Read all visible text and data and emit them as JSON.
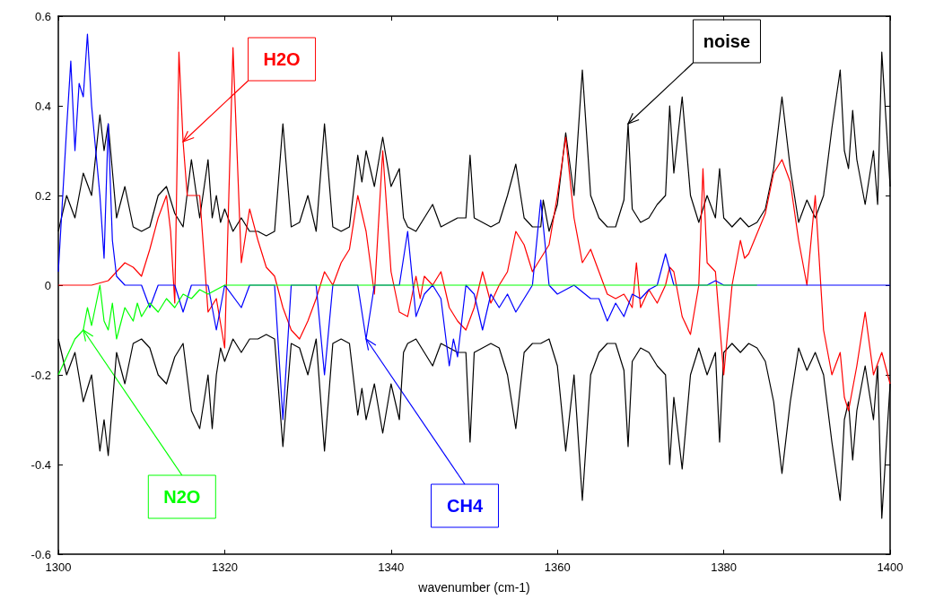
{
  "chart_data": {
    "type": "line",
    "xlabel": "wavenumber (cm-1)",
    "xlim": [
      1300,
      1400
    ],
    "xticks": [
      1300,
      1320,
      1340,
      1360,
      1380,
      1400
    ],
    "ylim": [
      -0.6,
      0.6
    ],
    "yticks": [
      -0.6,
      -0.4,
      -0.2,
      0,
      0.2,
      0.4,
      0.6
    ],
    "grid": false,
    "marker": "none",
    "line_style": "solid",
    "series": [
      {
        "color": "#000000",
        "x": [
          1300,
          1301,
          1302,
          1303,
          1304,
          1305,
          1305.5,
          1306,
          1307,
          1308,
          1309,
          1310,
          1311,
          1312,
          1313,
          1314,
          1315,
          1316,
          1317,
          1318,
          1318.5,
          1319,
          1319.5,
          1320,
          1321,
          1322,
          1323,
          1324,
          1325,
          1326,
          1327,
          1328,
          1329,
          1330,
          1331,
          1332,
          1333,
          1334,
          1335,
          1336,
          1336.5,
          1337,
          1338,
          1339,
          1340,
          1341,
          1341.5,
          1342,
          1343,
          1344,
          1345,
          1346,
          1347,
          1348,
          1349,
          1349.5,
          1350,
          1351,
          1352,
          1353,
          1354,
          1355,
          1356,
          1357,
          1358,
          1358.3,
          1359,
          1360,
          1361,
          1362,
          1363,
          1364,
          1365,
          1366,
          1367,
          1368,
          1368.5,
          1369,
          1370,
          1371,
          1372,
          1373,
          1373.5,
          1374,
          1375,
          1376,
          1377,
          1378,
          1379,
          1379.5,
          1380,
          1381,
          1382,
          1383,
          1384,
          1385,
          1386,
          1387,
          1388,
          1389,
          1390,
          1391,
          1392,
          1393,
          1394,
          1394.5,
          1395,
          1395.5,
          1396,
          1397,
          1398,
          1398.5,
          1399,
          1400
        ],
        "values": [
          0.12,
          0.2,
          0.15,
          0.25,
          0.2,
          0.38,
          0.3,
          0.36,
          0.15,
          0.22,
          0.13,
          0.12,
          0.13,
          0.2,
          0.22,
          0.16,
          0.13,
          0.28,
          0.15,
          0.28,
          0.15,
          0.2,
          0.14,
          0.17,
          0.12,
          0.15,
          0.12,
          0.12,
          0.11,
          0.12,
          0.36,
          0.13,
          0.14,
          0.2,
          0.12,
          0.36,
          0.13,
          0.12,
          0.13,
          0.29,
          0.23,
          0.3,
          0.22,
          0.33,
          0.22,
          0.26,
          0.15,
          0.13,
          0.12,
          0.15,
          0.18,
          0.13,
          0.14,
          0.15,
          0.15,
          0.29,
          0.15,
          0.14,
          0.13,
          0.14,
          0.2,
          0.27,
          0.15,
          0.13,
          0.13,
          0.19,
          0.12,
          0.18,
          0.34,
          0.2,
          0.48,
          0.2,
          0.15,
          0.13,
          0.13,
          0.19,
          0.36,
          0.17,
          0.14,
          0.15,
          0.18,
          0.2,
          0.4,
          0.25,
          0.42,
          0.2,
          0.14,
          0.2,
          0.15,
          0.26,
          0.15,
          0.13,
          0.15,
          0.13,
          0.14,
          0.17,
          0.26,
          0.42,
          0.26,
          0.14,
          0.19,
          0.15,
          0.2,
          0.35,
          0.48,
          0.3,
          0.26,
          0.39,
          0.28,
          0.18,
          0.3,
          0.18,
          0.52,
          0.22
        ]
      },
      {
        "color": "#000000",
        "x": [
          1300,
          1301,
          1302,
          1303,
          1304,
          1305,
          1305.5,
          1306,
          1307,
          1308,
          1309,
          1310,
          1311,
          1312,
          1313,
          1314,
          1315,
          1316,
          1317,
          1318,
          1318.5,
          1319,
          1319.5,
          1320,
          1321,
          1322,
          1323,
          1324,
          1325,
          1326,
          1327,
          1328,
          1329,
          1330,
          1331,
          1332,
          1333,
          1334,
          1335,
          1336,
          1336.5,
          1337,
          1338,
          1339,
          1340,
          1341,
          1341.5,
          1342,
          1343,
          1344,
          1345,
          1346,
          1347,
          1348,
          1349,
          1349.5,
          1350,
          1351,
          1352,
          1353,
          1354,
          1355,
          1356,
          1357,
          1358,
          1359,
          1360,
          1361,
          1362,
          1363,
          1364,
          1365,
          1366,
          1367,
          1368,
          1368.5,
          1369,
          1370,
          1371,
          1372,
          1373,
          1373.5,
          1374,
          1375,
          1376,
          1377,
          1378,
          1379,
          1379.5,
          1380,
          1381,
          1382,
          1383,
          1384,
          1385,
          1386,
          1387,
          1388,
          1389,
          1390,
          1391,
          1392,
          1393,
          1394,
          1394.5,
          1395,
          1395.5,
          1396,
          1397,
          1398,
          1398.5,
          1399,
          1400
        ],
        "values": [
          -0.12,
          -0.2,
          -0.15,
          -0.26,
          -0.2,
          -0.37,
          -0.3,
          -0.38,
          -0.15,
          -0.22,
          -0.13,
          -0.12,
          -0.14,
          -0.2,
          -0.22,
          -0.16,
          -0.13,
          -0.28,
          -0.32,
          -0.2,
          -0.32,
          -0.2,
          -0.14,
          -0.17,
          -0.12,
          -0.15,
          -0.12,
          -0.12,
          -0.11,
          -0.12,
          -0.36,
          -0.13,
          -0.14,
          -0.2,
          -0.12,
          -0.37,
          -0.13,
          -0.12,
          -0.13,
          -0.29,
          -0.23,
          -0.3,
          -0.22,
          -0.33,
          -0.22,
          -0.3,
          -0.15,
          -0.13,
          -0.12,
          -0.15,
          -0.18,
          -0.13,
          -0.14,
          -0.15,
          -0.15,
          -0.35,
          -0.15,
          -0.14,
          -0.13,
          -0.14,
          -0.2,
          -0.32,
          -0.15,
          -0.13,
          -0.13,
          -0.12,
          -0.18,
          -0.37,
          -0.2,
          -0.48,
          -0.2,
          -0.15,
          -0.13,
          -0.13,
          -0.19,
          -0.36,
          -0.17,
          -0.14,
          -0.15,
          -0.18,
          -0.2,
          -0.4,
          -0.25,
          -0.41,
          -0.2,
          -0.14,
          -0.2,
          -0.15,
          -0.35,
          -0.15,
          -0.13,
          -0.15,
          -0.13,
          -0.14,
          -0.17,
          -0.26,
          -0.42,
          -0.26,
          -0.14,
          -0.19,
          -0.15,
          -0.2,
          -0.35,
          -0.48,
          -0.3,
          -0.26,
          -0.39,
          -0.28,
          -0.18,
          -0.3,
          -0.18,
          -0.52,
          -0.22
        ]
      },
      {
        "color": "#ff0000",
        "x": [
          1300,
          1304,
          1306,
          1307,
          1308,
          1309,
          1310,
          1311,
          1312,
          1313,
          1313.5,
          1314,
          1314.5,
          1315,
          1315.5,
          1317,
          1318,
          1319,
          1320,
          1320.5,
          1321,
          1322,
          1323,
          1324,
          1325,
          1326,
          1327,
          1328,
          1329,
          1330,
          1331,
          1332,
          1333,
          1334,
          1335,
          1336,
          1337,
          1338,
          1339,
          1340,
          1341,
          1342,
          1343,
          1343.5,
          1344,
          1345,
          1346,
          1347,
          1348,
          1349,
          1350,
          1351,
          1352,
          1353,
          1354,
          1355,
          1356,
          1357,
          1358,
          1359,
          1360,
          1361,
          1362,
          1363,
          1364,
          1365,
          1366,
          1367,
          1368,
          1369,
          1369.5,
          1370,
          1371,
          1372,
          1373,
          1373.5,
          1374,
          1375,
          1376,
          1377,
          1377.5,
          1378,
          1379,
          1380,
          1381,
          1382,
          1382.5,
          1383,
          1385,
          1386,
          1387,
          1388,
          1389,
          1390,
          1391,
          1392,
          1393,
          1394,
          1394.5,
          1395,
          1396,
          1397,
          1398,
          1399,
          1400
        ],
        "values": [
          0,
          0,
          0.01,
          0.03,
          0.05,
          0.04,
          0.02,
          0.08,
          0.15,
          0.2,
          0.12,
          -0.04,
          0.52,
          0.32,
          0.2,
          0.2,
          -0.06,
          -0.03,
          -0.14,
          0.2,
          0.53,
          0.05,
          0.17,
          0.1,
          0.04,
          0.02,
          -0.05,
          -0.1,
          -0.12,
          -0.08,
          -0.03,
          0.03,
          0,
          0.05,
          0.08,
          0.2,
          0.12,
          -0.02,
          0.3,
          0.03,
          -0.06,
          -0.07,
          0.02,
          -0.03,
          0.02,
          0,
          0.03,
          -0.05,
          -0.08,
          -0.1,
          -0.05,
          0.03,
          -0.04,
          0,
          0.03,
          0.12,
          0.09,
          0.03,
          0.06,
          0.09,
          0.2,
          0.33,
          0.15,
          0.05,
          0.08,
          0.03,
          -0.02,
          -0.03,
          -0.02,
          -0.05,
          0.05,
          -0.05,
          -0.01,
          -0.04,
          0,
          0.04,
          0.03,
          -0.07,
          -0.11,
          0,
          0.26,
          0.05,
          0.03,
          -0.2,
          0,
          0.1,
          0.06,
          0.07,
          0.16,
          0.25,
          0.28,
          0.23,
          0.1,
          0,
          0.2,
          -0.1,
          -0.2,
          -0.15,
          -0.25,
          -0.28,
          -0.18,
          -0.06,
          -0.2,
          -0.15,
          -0.22
        ]
      },
      {
        "color": "#0000ff",
        "x": [
          1300,
          1301,
          1301.5,
          1302,
          1302.5,
          1303,
          1303.5,
          1304,
          1305,
          1305.5,
          1306,
          1306.5,
          1307,
          1308,
          1310,
          1311,
          1312,
          1314,
          1315,
          1316,
          1318,
          1319,
          1320,
          1322,
          1323,
          1326,
          1327,
          1328,
          1331,
          1332,
          1333,
          1336,
          1337,
          1338,
          1341,
          1342,
          1343,
          1344,
          1345,
          1346,
          1347,
          1347.5,
          1348,
          1349,
          1350,
          1351,
          1352,
          1353,
          1354,
          1355,
          1356,
          1357,
          1358,
          1359,
          1360,
          1362,
          1364,
          1365,
          1366,
          1367,
          1368,
          1369,
          1370,
          1371,
          1372,
          1373,
          1374,
          1378,
          1379,
          1380,
          1384,
          1400
        ],
        "values": [
          0.03,
          0.35,
          0.5,
          0.3,
          0.45,
          0.42,
          0.56,
          0.4,
          0.2,
          0.06,
          0.36,
          0.1,
          0.02,
          0,
          0,
          -0.05,
          0,
          0,
          -0.06,
          0,
          0,
          -0.1,
          0,
          -0.05,
          0,
          0,
          -0.3,
          0,
          0,
          -0.2,
          0,
          0,
          -0.12,
          0,
          0,
          0.12,
          -0.07,
          -0.02,
          0,
          -0.03,
          -0.18,
          -0.12,
          -0.16,
          0,
          -0.02,
          -0.1,
          -0.02,
          -0.05,
          -0.02,
          -0.06,
          -0.03,
          0,
          0.19,
          0,
          -0.02,
          0,
          -0.03,
          -0.03,
          -0.08,
          -0.04,
          -0.07,
          -0.02,
          -0.03,
          -0.01,
          0,
          0.07,
          0,
          0,
          0.01,
          0,
          0,
          0
        ]
      },
      {
        "color": "#00ff00",
        "x": [
          1300,
          1301,
          1302,
          1303,
          1303.5,
          1304,
          1305,
          1305.5,
          1306,
          1306.5,
          1307,
          1308,
          1309,
          1309.5,
          1310,
          1311,
          1312,
          1313,
          1314,
          1315,
          1316,
          1317,
          1318,
          1320,
          1322,
          1330,
          1384
        ],
        "values": [
          -0.2,
          -0.16,
          -0.12,
          -0.1,
          -0.05,
          -0.09,
          0,
          -0.08,
          -0.1,
          -0.04,
          -0.12,
          -0.05,
          -0.08,
          -0.04,
          -0.07,
          -0.04,
          -0.06,
          -0.03,
          -0.05,
          -0.02,
          -0.03,
          -0.01,
          -0.02,
          0,
          0,
          0,
          0
        ]
      }
    ],
    "annotations": [
      {
        "text": "H2O",
        "x": 1315,
        "y": 0.32
      },
      {
        "text": "noise",
        "x": 1368.5,
        "y": 0.36
      },
      {
        "text": "N2O",
        "x": 1303,
        "y": -0.1
      },
      {
        "text": "CH4",
        "x": 1337,
        "y": -0.12
      }
    ]
  }
}
